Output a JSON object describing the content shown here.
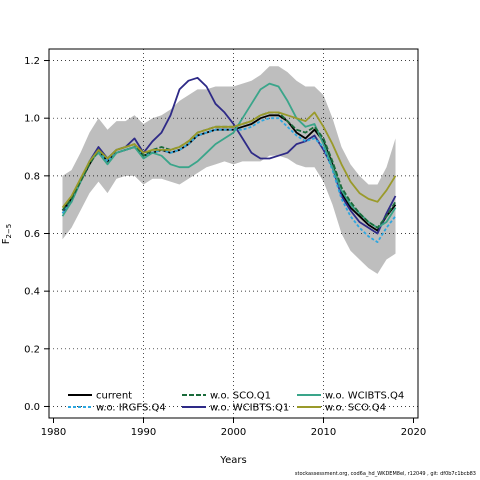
{
  "chart_data": {
    "type": "line",
    "title": "",
    "xlabel": "Years",
    "ylabel": "F",
    "ylabel_sub": "2−5",
    "xlim": [
      1979.5,
      2020.5
    ],
    "ylim": [
      -0.04,
      1.24
    ],
    "x_ticks": [
      1980,
      1990,
      2000,
      2010,
      2020
    ],
    "y_ticks": [
      0.0,
      0.2,
      0.4,
      0.6,
      0.8,
      1.0,
      1.2
    ],
    "x_tick_labels": [
      "1980",
      "1990",
      "2000",
      "2010",
      "2020"
    ],
    "y_tick_labels": [
      "0.0",
      "0.2",
      "0.4",
      "0.6",
      "0.8",
      "1.0",
      "1.2"
    ],
    "grid": true,
    "legend_position": "bottom",
    "x": [
      1981,
      1982,
      1983,
      1984,
      1985,
      1986,
      1987,
      1988,
      1989,
      1990,
      1991,
      1992,
      1993,
      1994,
      1995,
      1996,
      1997,
      1998,
      1999,
      2000,
      2001,
      2002,
      2003,
      2004,
      2005,
      2006,
      2007,
      2008,
      2009,
      2010,
      2011,
      2012,
      2013,
      2014,
      2015,
      2016,
      2017,
      2018
    ],
    "confidence_band": {
      "color": "#bebebe",
      "upper": [
        0.8,
        0.82,
        0.88,
        0.95,
        1.0,
        0.96,
        0.99,
        0.99,
        1.01,
        0.98,
        1.0,
        1.01,
        1.03,
        1.06,
        1.08,
        1.1,
        1.1,
        1.11,
        1.11,
        1.11,
        1.12,
        1.13,
        1.15,
        1.18,
        1.18,
        1.16,
        1.13,
        1.11,
        1.11,
        1.08,
        1.0,
        0.9,
        0.84,
        0.8,
        0.77,
        0.77,
        0.83,
        0.93
      ],
      "lower": [
        0.58,
        0.62,
        0.68,
        0.74,
        0.78,
        0.74,
        0.79,
        0.8,
        0.8,
        0.77,
        0.79,
        0.79,
        0.78,
        0.77,
        0.79,
        0.81,
        0.83,
        0.84,
        0.85,
        0.84,
        0.85,
        0.85,
        0.85,
        0.87,
        0.87,
        0.86,
        0.84,
        0.83,
        0.83,
        0.78,
        0.7,
        0.6,
        0.54,
        0.51,
        0.48,
        0.46,
        0.51,
        0.53
      ]
    },
    "series": [
      {
        "name": "current",
        "color": "#000000",
        "dash": "",
        "width": 1.8,
        "values": [
          0.68,
          0.72,
          0.78,
          0.84,
          0.89,
          0.85,
          0.88,
          0.89,
          0.9,
          0.87,
          0.88,
          0.89,
          0.88,
          0.89,
          0.91,
          0.94,
          0.95,
          0.96,
          0.96,
          0.96,
          0.97,
          0.98,
          1.0,
          1.01,
          1.01,
          0.99,
          0.95,
          0.93,
          0.96,
          0.92,
          0.84,
          0.74,
          0.69,
          0.66,
          0.63,
          0.61,
          0.66,
          0.7
        ]
      },
      {
        "name": "w.o. WCIBTS.Q1",
        "color": "#2e2a87",
        "dash": "",
        "width": 1.8,
        "values": [
          0.67,
          0.71,
          0.78,
          0.85,
          0.9,
          0.86,
          0.89,
          0.9,
          0.93,
          0.88,
          0.92,
          0.95,
          1.01,
          1.1,
          1.13,
          1.14,
          1.11,
          1.05,
          1.02,
          0.98,
          0.93,
          0.88,
          0.86,
          0.86,
          0.87,
          0.88,
          0.91,
          0.92,
          0.94,
          0.89,
          0.83,
          0.73,
          0.68,
          0.64,
          0.62,
          0.6,
          0.67,
          0.73
        ]
      },
      {
        "name": "w.o. IRGFS.Q4",
        "color": "#2da7e0",
        "dash": "3,2",
        "width": 1.8,
        "values": [
          0.67,
          0.71,
          0.78,
          0.85,
          0.89,
          0.85,
          0.88,
          0.89,
          0.9,
          0.87,
          0.88,
          0.89,
          0.88,
          0.89,
          0.91,
          0.94,
          0.95,
          0.96,
          0.96,
          0.96,
          0.96,
          0.97,
          0.99,
          1.0,
          1.0,
          0.97,
          0.94,
          0.92,
          0.93,
          0.9,
          0.82,
          0.72,
          0.66,
          0.62,
          0.59,
          0.57,
          0.62,
          0.66
        ]
      },
      {
        "name": "w.o. WCIBTS.Q4",
        "color": "#3aa58a",
        "dash": "",
        "width": 1.8,
        "values": [
          0.66,
          0.71,
          0.78,
          0.85,
          0.88,
          0.84,
          0.88,
          0.89,
          0.9,
          0.86,
          0.88,
          0.87,
          0.84,
          0.83,
          0.83,
          0.85,
          0.88,
          0.91,
          0.93,
          0.95,
          1.0,
          1.05,
          1.1,
          1.12,
          1.11,
          1.06,
          1.0,
          0.97,
          0.98,
          0.91,
          0.83,
          0.75,
          0.7,
          0.67,
          0.64,
          0.62,
          0.64,
          0.69
        ]
      },
      {
        "name": "w.o. SCO.Q1",
        "color": "#1a6b3a",
        "dash": "5,2",
        "width": 1.8,
        "values": [
          0.68,
          0.72,
          0.78,
          0.84,
          0.89,
          0.86,
          0.89,
          0.9,
          0.91,
          0.87,
          0.89,
          0.9,
          0.89,
          0.9,
          0.92,
          0.95,
          0.96,
          0.97,
          0.97,
          0.97,
          0.98,
          0.99,
          1.01,
          1.02,
          1.02,
          0.99,
          0.96,
          0.95,
          0.97,
          0.93,
          0.85,
          0.76,
          0.71,
          0.67,
          0.64,
          0.62,
          0.66,
          0.71
        ]
      },
      {
        "name": "w.o. SCO.Q4",
        "color": "#9a9a2a",
        "dash": "",
        "width": 1.8,
        "values": [
          0.69,
          0.73,
          0.79,
          0.85,
          0.89,
          0.86,
          0.89,
          0.9,
          0.91,
          0.88,
          0.89,
          0.89,
          0.89,
          0.9,
          0.92,
          0.95,
          0.96,
          0.97,
          0.97,
          0.97,
          0.98,
          0.99,
          1.01,
          1.02,
          1.02,
          1.01,
          1.0,
          0.99,
          1.02,
          0.97,
          0.91,
          0.84,
          0.78,
          0.74,
          0.72,
          0.71,
          0.75,
          0.8
        ]
      }
    ]
  },
  "footer": "stockassessment.org, cod6a_hd_WKDEM8el, r12049 , git: df0b7c1bcb83"
}
